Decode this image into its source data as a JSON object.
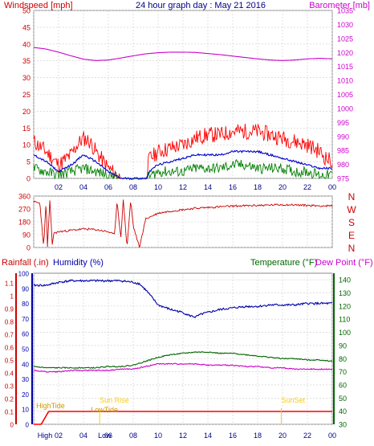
{
  "page": {
    "title": "24 hour graph day : May 21 2016"
  },
  "colors": {
    "windspeed": "#ff0000",
    "gust_avg": "#0000cc",
    "wind_low": "#008000",
    "barometer": "#cc00cc",
    "direction": "#cc0000",
    "rainfall": "#ff0000",
    "humidity": "#0000aa",
    "temperature": "#006600",
    "dewpoint": "#cc00cc",
    "grid": "#cccccc",
    "sun_marker": "#ffcc00",
    "tide_label": "#cc9900"
  },
  "chart_data": [
    {
      "id": "wind-baro",
      "type": "line",
      "left_axis_label": "Windspeed [mph]",
      "right_axis_label": "Barometer [mb]",
      "x_ticks": [
        "02",
        "04",
        "06",
        "08",
        "10",
        "12",
        "14",
        "16",
        "18",
        "20",
        "22",
        "00"
      ],
      "left_ticks": [
        "0",
        "5",
        "10",
        "15",
        "20",
        "25",
        "30",
        "35",
        "40",
        "45",
        "50"
      ],
      "right_ticks": [
        "975",
        "980",
        "985",
        "990",
        "995",
        "1000",
        "1005",
        "1010",
        "1015",
        "1020",
        "1025",
        "1030",
        "1035"
      ],
      "xlim": [
        0,
        24
      ],
      "ylim_left": [
        0,
        50
      ],
      "ylim_right": [
        975,
        1035
      ],
      "series": [
        {
          "key": "windspeed",
          "x": [
            0,
            1,
            2,
            3,
            3.5,
            4,
            4.5,
            5,
            6,
            7,
            8,
            9,
            9.3,
            9.7,
            10,
            11,
            12,
            13,
            14,
            15,
            16,
            17,
            18,
            19,
            20,
            21,
            22,
            23,
            23.5,
            24
          ],
          "values": [
            11,
            8,
            4,
            7,
            10,
            12,
            11,
            8,
            3,
            0,
            0,
            0,
            6,
            7,
            8,
            9,
            10,
            12,
            13,
            13,
            14,
            14,
            14,
            13,
            12,
            11,
            10,
            8,
            6,
            5
          ]
        },
        {
          "key": "gust_avg",
          "x": [
            0,
            1,
            2,
            3,
            4,
            5,
            6,
            7,
            8,
            9,
            9.5,
            10,
            11,
            12,
            13,
            14,
            15,
            16,
            17,
            18,
            19,
            20,
            21,
            22,
            23,
            24
          ],
          "values": [
            7,
            5,
            2,
            4,
            7,
            5,
            2,
            0,
            0,
            0,
            3,
            4,
            5,
            6,
            7,
            7,
            7,
            8,
            8,
            8,
            7,
            6,
            5,
            4,
            3,
            3
          ]
        },
        {
          "key": "wind_low",
          "x": [
            0,
            1,
            2,
            3,
            4,
            5,
            6,
            7,
            8,
            9,
            9.5,
            10,
            11,
            12,
            13,
            14,
            15,
            16,
            17,
            18,
            19,
            20,
            21,
            22,
            23,
            24
          ],
          "values": [
            3,
            2,
            1,
            2,
            3,
            2,
            1,
            0,
            0,
            0,
            1,
            2,
            2,
            2,
            3,
            3,
            3,
            4,
            4,
            3,
            3,
            3,
            2,
            2,
            1,
            1
          ]
        },
        {
          "key": "barometer",
          "axis": "right",
          "x": [
            0,
            1,
            2,
            3,
            4,
            5,
            6,
            7,
            8,
            9,
            10,
            11,
            12,
            13,
            14,
            15,
            16,
            17,
            18,
            19,
            20,
            21,
            22,
            23,
            24
          ],
          "values": [
            1021.8,
            1021.2,
            1020.1,
            1018.8,
            1017.6,
            1017.1,
            1017.3,
            1018.0,
            1018.8,
            1019.5,
            1019.9,
            1020.1,
            1020.1,
            1020.0,
            1019.6,
            1019.2,
            1018.7,
            1018.2,
            1017.7,
            1017.3,
            1017.1,
            1017.3,
            1017.7,
            1017.9,
            1017.7
          ]
        }
      ]
    },
    {
      "id": "direction",
      "type": "line",
      "left_ticks": [
        "0",
        "90",
        "180",
        "270",
        "360"
      ],
      "right_labels": [
        "N",
        "W",
        "S",
        "E",
        "N"
      ],
      "xlim": [
        0,
        24
      ],
      "ylim": [
        0,
        360
      ],
      "series": [
        {
          "key": "direction",
          "x": [
            0,
            0.5,
            0.8,
            1.0,
            1.1,
            1.3,
            1.5,
            1.6,
            2.0,
            3.0,
            4.0,
            5.0,
            6.0,
            6.5,
            6.7,
            7.0,
            7.2,
            7.5,
            7.8,
            8.0,
            8.5,
            9.0,
            10.0,
            11.0,
            12.0,
            13.0,
            14.0,
            15.0,
            16.0,
            17.0,
            18.0,
            19.0,
            20.0,
            21.0,
            22.0,
            23.0,
            24.0
          ],
          "values": [
            320,
            310,
            0,
            340,
            0,
            330,
            10,
            100,
            110,
            120,
            130,
            125,
            110,
            90,
            330,
            60,
            340,
            0,
            330,
            150,
            0,
            200,
            240,
            255,
            265,
            275,
            280,
            285,
            290,
            292,
            295,
            297,
            300,
            298,
            295,
            292,
            290
          ]
        }
      ]
    },
    {
      "id": "rain-humidity-temp",
      "type": "line",
      "left_axis_label_1": "Rainfall (.in)",
      "left_axis_label_2": "Humidity (%)",
      "right_axis_label_1": "Temperature (°F)",
      "right_axis_label_2": "Dew Point (°F)",
      "x_ticks": [
        "High",
        "02",
        "04",
        "Low",
        "06",
        "08",
        "10",
        "12",
        "14",
        "16",
        "18",
        "20",
        "22",
        "00"
      ],
      "rain_ticks": [
        "0",
        "0.1",
        "0.2",
        "0.3",
        "0.4",
        "0.5",
        "0.6",
        "0.7",
        "0.8",
        "0.9",
        "1",
        "1.1"
      ],
      "humidity_ticks": [
        "0",
        "10",
        "20",
        "30",
        "40",
        "50",
        "60",
        "70",
        "80",
        "90",
        "100"
      ],
      "temp_ticks": [
        "30",
        "40",
        "50",
        "60",
        "70",
        "80",
        "90",
        "100",
        "110",
        "120",
        "130",
        "140"
      ],
      "xlim": [
        0,
        24
      ],
      "ylim_humidity": [
        0,
        100
      ],
      "ylim_temp": [
        30,
        145
      ],
      "series": [
        {
          "key": "humidity",
          "x": [
            0,
            1,
            2,
            3,
            4,
            5,
            6,
            7,
            8,
            8.5,
            9,
            9.5,
            10,
            11,
            12,
            12.5,
            13,
            13.5,
            14,
            15,
            16,
            17,
            18,
            19,
            20,
            21,
            22,
            23,
            24
          ],
          "values": [
            92,
            92,
            94,
            95,
            95,
            95,
            95,
            95,
            94,
            93,
            89,
            84,
            79,
            76,
            74,
            72,
            71,
            73,
            74,
            76,
            77,
            78,
            78,
            79,
            79,
            79,
            80,
            80,
            80
          ]
        },
        {
          "key": "temperature",
          "axis": "right",
          "x": [
            0,
            1,
            2,
            3,
            4,
            5,
            6,
            7,
            8,
            9,
            10,
            11,
            12,
            13,
            14,
            15,
            16,
            17,
            18,
            19,
            20,
            21,
            22,
            23,
            24
          ],
          "values": [
            74,
            73,
            73,
            73,
            73,
            73,
            74,
            74,
            75,
            78,
            81,
            83,
            84,
            85,
            85,
            84,
            84,
            83,
            82,
            81,
            80,
            80,
            79,
            79,
            78
          ]
        },
        {
          "key": "dewpoint",
          "axis": "right",
          "x": [
            0,
            1,
            2,
            3,
            4,
            5,
            6,
            7,
            8,
            9,
            10,
            11,
            12,
            13,
            14,
            15,
            16,
            17,
            18,
            19,
            20,
            21,
            22,
            23,
            24
          ],
          "values": [
            71,
            70,
            70,
            71,
            71,
            71,
            71,
            72,
            72,
            74,
            76,
            76,
            76,
            76,
            75,
            75,
            75,
            74,
            74,
            73,
            73,
            72,
            72,
            72,
            72
          ]
        },
        {
          "key": "rainfall",
          "axis": "rain",
          "x": [
            0,
            0.6,
            0.9,
            1.2,
            24
          ],
          "values": [
            0,
            0,
            0.05,
            0.1,
            0.1
          ]
        }
      ],
      "annotations": [
        {
          "label": "HighTide",
          "x": 0.2
        },
        {
          "label": "Sun Rise",
          "x": 5.3
        },
        {
          "label": "LowTide",
          "x": 4.6
        },
        {
          "label": "SunSet",
          "x": 19.9
        }
      ]
    }
  ]
}
